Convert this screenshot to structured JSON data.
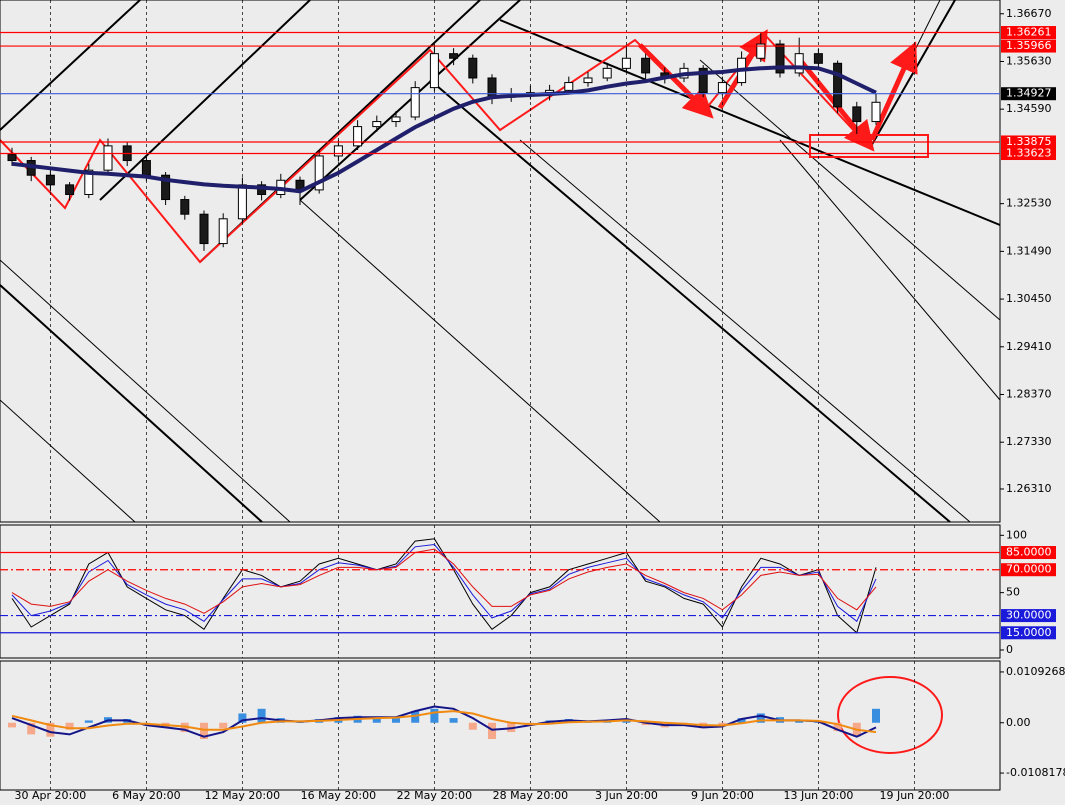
{
  "chart_data": [
    {
      "type": "candlestick",
      "categories": [
        null,
        null,
        "30 Apr 20:00",
        null,
        null,
        null,
        null,
        "6 May 20:00",
        null,
        null,
        null,
        null,
        "12 May 20:00",
        null,
        null,
        null,
        null,
        "16 May 20:00",
        null,
        null,
        null,
        null,
        "22 May 20:00",
        null,
        null,
        null,
        null,
        "28 May 20:00",
        null,
        null,
        null,
        null,
        "3 Jun 20:00",
        null,
        null,
        null,
        null,
        "9 Jun 20:00",
        null,
        null,
        null,
        null,
        "13 Jun 20:00",
        null,
        null,
        null,
        null,
        "19 Jun 20:00",
        null,
        null,
        null
      ],
      "ohlc": [
        [
          1.336,
          1.3375,
          1.3335,
          1.3347
        ],
        [
          1.3347,
          1.3355,
          1.3302,
          1.3315
        ],
        [
          1.3315,
          1.3325,
          1.328,
          1.3294
        ],
        [
          1.3294,
          1.33,
          1.326,
          1.3273
        ],
        [
          1.3273,
          1.334,
          1.3265,
          1.3326
        ],
        [
          1.3326,
          1.3395,
          1.3318,
          1.3379
        ],
        [
          1.3379,
          1.3388,
          1.3335,
          1.3347
        ],
        [
          1.3347,
          1.3355,
          1.3302,
          1.3315
        ],
        [
          1.3315,
          1.3322,
          1.325,
          1.3262
        ],
        [
          1.3262,
          1.327,
          1.3218,
          1.323
        ],
        [
          1.323,
          1.3238,
          1.315,
          1.3166
        ],
        [
          1.3166,
          1.3232,
          1.3158,
          1.322
        ],
        [
          1.322,
          1.331,
          1.3212,
          1.3294
        ],
        [
          1.3294,
          1.3302,
          1.326,
          1.3273
        ],
        [
          1.3273,
          1.3318,
          1.3265,
          1.3304
        ],
        [
          1.3304,
          1.3312,
          1.325,
          1.3283
        ],
        [
          1.3283,
          1.337,
          1.3275,
          1.3357
        ],
        [
          1.3357,
          1.3392,
          1.3345,
          1.3379
        ],
        [
          1.3379,
          1.3435,
          1.337,
          1.3421
        ],
        [
          1.3421,
          1.3445,
          1.341,
          1.3432
        ],
        [
          1.3432,
          1.3455,
          1.342,
          1.3442
        ],
        [
          1.3442,
          1.352,
          1.3435,
          1.3506
        ],
        [
          1.3506,
          1.36,
          1.3498,
          1.358
        ],
        [
          1.358,
          1.3592,
          1.3555,
          1.357
        ],
        [
          1.357,
          1.3578,
          1.3515,
          1.3527
        ],
        [
          1.3527,
          1.3535,
          1.347,
          1.3485
        ],
        [
          1.3485,
          1.3505,
          1.3475,
          1.349
        ],
        [
          1.349,
          1.351,
          1.348,
          1.3495
        ],
        [
          1.3495,
          1.3512,
          1.3478,
          1.35
        ],
        [
          1.35,
          1.353,
          1.3492,
          1.3517
        ],
        [
          1.3517,
          1.354,
          1.3508,
          1.3527
        ],
        [
          1.3527,
          1.356,
          1.352,
          1.3548
        ],
        [
          1.3548,
          1.3598,
          1.354,
          1.357
        ],
        [
          1.357,
          1.358,
          1.3525,
          1.3538
        ],
        [
          1.3538,
          1.355,
          1.3515,
          1.3527
        ],
        [
          1.3527,
          1.356,
          1.3518,
          1.3548
        ],
        [
          1.3548,
          1.3555,
          1.3485,
          1.3495
        ],
        [
          1.3495,
          1.353,
          1.3488,
          1.3517
        ],
        [
          1.3517,
          1.3585,
          1.351,
          1.357
        ],
        [
          1.357,
          1.3626,
          1.3562,
          1.3601
        ],
        [
          1.3601,
          1.361,
          1.3528,
          1.3538
        ],
        [
          1.3538,
          1.3615,
          1.353,
          1.358
        ],
        [
          1.358,
          1.359,
          1.3545,
          1.3559
        ],
        [
          1.3559,
          1.3565,
          1.345,
          1.3464
        ],
        [
          1.3464,
          1.3475,
          1.3405,
          1.3432
        ],
        [
          1.3432,
          1.3492,
          1.3425,
          1.3474
        ],
        null,
        null,
        null,
        null,
        null
      ],
      "up_color": "#ffffff",
      "down_color": "#1a1a1a",
      "series": [
        {
          "color": "#1f1f6b",
          "width": 4,
          "values": [
            1.334,
            1.3335,
            1.333,
            1.3325,
            1.332,
            1.3318,
            1.3315,
            1.3312,
            1.3305,
            1.33,
            1.3295,
            1.3292,
            1.329,
            1.3288,
            1.3285,
            1.328,
            1.33,
            1.332,
            1.3345,
            1.337,
            1.3395,
            1.342,
            1.344,
            1.346,
            1.3475,
            1.3485,
            1.3488,
            1.349,
            1.3492,
            1.3495,
            1.35,
            1.3508,
            1.3515,
            1.352,
            1.3528,
            1.3535,
            1.3538,
            1.354,
            1.3545,
            1.3548,
            1.355,
            1.355,
            1.3548,
            1.3535,
            1.3515,
            1.3495,
            null,
            null,
            null,
            null,
            null
          ]
        }
      ],
      "ylim": [
        1.2559,
        1.3697
      ],
      "yticks": [
        {
          "value": 1.3667,
          "label": "1.36670"
        },
        {
          "value": 1.3563,
          "label": "1.35630"
        },
        {
          "value": 1.3459,
          "label": "1.34590"
        },
        {
          "value": 1.3253,
          "label": "1.32530"
        },
        {
          "value": 1.3149,
          "label": "1.31490"
        },
        {
          "value": 1.3045,
          "label": "1.30450"
        },
        {
          "value": 1.2941,
          "label": "1.29410"
        },
        {
          "value": 1.2837,
          "label": "1.28370"
        },
        {
          "value": 1.2733,
          "label": "1.27330"
        },
        {
          "value": 1.2631,
          "label": "1.26310"
        }
      ],
      "levels": [
        {
          "value": 1.36261,
          "label": "1.36261",
          "color": "#ff0000",
          "bg": "#ff0000"
        },
        {
          "value": 1.35966,
          "label": "1.35966",
          "color": "#ff0000",
          "bg": "#ff0000"
        },
        {
          "value": 1.34927,
          "label": "1.34927",
          "color": "#3a5bd9",
          "bg": "#000000"
        },
        {
          "value": 1.33875,
          "label": "1.33875",
          "color": "#ff0000",
          "bg": "#ff0000"
        },
        {
          "value": 1.33623,
          "label": "1.33623",
          "color": "#ff0000",
          "bg": "#ff0000"
        }
      ]
    },
    {
      "type": "line",
      "series": [
        {
          "color": "#000000",
          "width": 1,
          "values": [
            45,
            20,
            30,
            40,
            75,
            85,
            55,
            45,
            35,
            30,
            18,
            45,
            70,
            65,
            55,
            60,
            75,
            80,
            75,
            70,
            75,
            95,
            97,
            70,
            40,
            18,
            30,
            50,
            55,
            70,
            75,
            80,
            85,
            60,
            55,
            45,
            40,
            20,
            55,
            80,
            75,
            65,
            70,
            30,
            15,
            72,
            null,
            null,
            null,
            null,
            null
          ]
        },
        {
          "color": "#1a1adb",
          "width": 1,
          "values": [
            48,
            30,
            34,
            41,
            68,
            78,
            57,
            48,
            40,
            35,
            25,
            44,
            62,
            62,
            55,
            58,
            70,
            76,
            74,
            70,
            73,
            90,
            92,
            72,
            48,
            28,
            34,
            49,
            53,
            66,
            72,
            76,
            80,
            62,
            56,
            48,
            42,
            28,
            52,
            72,
            72,
            65,
            68,
            38,
            25,
            62,
            null,
            null,
            null,
            null,
            null
          ]
        },
        {
          "color": "#e01010",
          "width": 1,
          "values": [
            50,
            40,
            38,
            42,
            60,
            70,
            60,
            52,
            45,
            40,
            32,
            42,
            55,
            58,
            55,
            57,
            65,
            72,
            72,
            70,
            72,
            85,
            88,
            75,
            55,
            38,
            38,
            48,
            52,
            62,
            68,
            72,
            75,
            65,
            58,
            50,
            45,
            35,
            48,
            65,
            68,
            65,
            66,
            45,
            35,
            55,
            null,
            null,
            null,
            null,
            null
          ]
        }
      ],
      "ylim": [
        -7,
        109
      ],
      "yticks": [
        0,
        50,
        100
      ],
      "levels": [
        {
          "value": 85,
          "label": "85.0000",
          "color": "#ff0000",
          "bg": "#ff0000",
          "dash": "none"
        },
        {
          "value": 70,
          "label": "70.0000",
          "color": "#ff0000",
          "bg": "#ff0000",
          "dash": "8 3 2 3"
        },
        {
          "value": 30,
          "label": "30.0000",
          "color": "#1a1adb",
          "bg": "#1a1adb",
          "dash": "8 3 2 3"
        },
        {
          "value": 15,
          "label": "15.0000",
          "color": "#1a1adb",
          "bg": "#1a1adb",
          "dash": "none"
        }
      ]
    },
    {
      "type": "bar",
      "values": [
        -0.001,
        -0.0025,
        -0.003,
        -0.0015,
        0.0005,
        0.0012,
        0.0008,
        -0.0005,
        -0.001,
        -0.002,
        -0.0035,
        -0.0012,
        0.002,
        0.003,
        0.001,
        0.0005,
        0.0008,
        0.0012,
        0.0015,
        0.0012,
        0.001,
        0.0025,
        0.003,
        0.001,
        -0.0015,
        -0.0035,
        -0.002,
        -0.0005,
        0.0005,
        0.0008,
        0.0005,
        0.0006,
        0.0008,
        -0.0005,
        -0.001,
        -0.0005,
        -0.0012,
        -0.0008,
        0.001,
        0.002,
        0.0012,
        0.0006,
        0.0004,
        -0.0018,
        -0.003,
        0.003,
        null,
        null,
        null,
        null,
        null
      ],
      "pos_color": "#3a8ee0",
      "neg_color": "#f5a88a",
      "series": [
        {
          "color": "#15158a",
          "width": 2,
          "values": [
            0.001,
            -0.0005,
            -0.002,
            -0.0025,
            -0.001,
            0.0005,
            0.0005,
            -0.0005,
            -0.001,
            -0.0015,
            -0.003,
            -0.002,
            0.0005,
            0.001,
            0.0005,
            0.0002,
            0.0005,
            0.001,
            0.0012,
            0.0012,
            0.0012,
            0.0025,
            0.0035,
            0.003,
            0.001,
            -0.0015,
            -0.0012,
            -0.0005,
            0.0002,
            0.0005,
            0.0003,
            0.0005,
            0.0008,
            0.0,
            -0.0005,
            -0.0005,
            -0.001,
            -0.0008,
            0.0008,
            0.0015,
            0.0005,
            0.0005,
            0.0003,
            -0.0015,
            -0.003,
            -0.001,
            null,
            null,
            null,
            null,
            null
          ]
        },
        {
          "color": "#f08a10",
          "width": 2,
          "values": [
            0.0015,
            0.0005,
            -0.0005,
            -0.0012,
            -0.0012,
            -0.0006,
            -0.0002,
            -0.0002,
            -0.0005,
            -0.0008,
            -0.0015,
            -0.0015,
            -0.0008,
            0.0,
            0.0003,
            0.0003,
            0.0004,
            0.0006,
            0.0008,
            0.001,
            0.0011,
            0.0015,
            0.0022,
            0.0025,
            0.002,
            0.0008,
            0.0,
            -0.0003,
            -0.0002,
            0.0001,
            0.0002,
            0.0003,
            0.0005,
            0.0003,
            0.0,
            -0.0002,
            -0.0005,
            -0.0006,
            -0.0001,
            0.0005,
            0.0005,
            0.0005,
            0.0004,
            -0.0003,
            -0.0015,
            -0.002,
            null,
            null,
            null,
            null,
            null
          ]
        }
      ],
      "ylim": [
        -0.01446,
        0.01328
      ],
      "yticks": [
        0.0109268,
        {
          "value": 0,
          "label": "0.00"
        },
        -0.0108178
      ]
    }
  ]
}
